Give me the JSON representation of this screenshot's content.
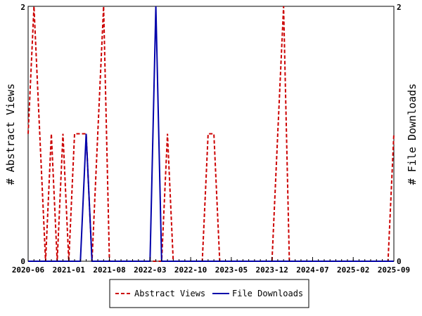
{
  "chart_data": {
    "type": "line",
    "x_tick_labels": [
      "2020-06",
      "2021-01",
      "2021-08",
      "2022-03",
      "2022-10",
      "2023-05",
      "2023-12",
      "2024-07",
      "2025-02",
      "2025-09"
    ],
    "x_range": [
      "2020-06",
      "2025-09"
    ],
    "y_left": {
      "label": "# Abstract Views",
      "range": [
        0,
        2
      ],
      "tick_labels": [
        "0",
        "2"
      ]
    },
    "y_right": {
      "label": "# File Downloads",
      "range": [
        0,
        2
      ],
      "tick_labels": [
        "0",
        "2"
      ]
    },
    "legend_position": "bottom-center",
    "grid": false,
    "series": [
      {
        "name": "Abstract Views",
        "axis": "left",
        "color": "#cc0000",
        "dash": "dashed",
        "x": [
          "2020-06",
          "2020-07",
          "2020-08",
          "2020-09",
          "2020-10",
          "2020-11",
          "2020-12",
          "2021-01",
          "2021-02",
          "2021-03",
          "2021-04",
          "2021-05",
          "2021-06",
          "2021-07",
          "2021-08",
          "2021-09",
          "2021-10",
          "2021-11",
          "2021-12",
          "2022-01",
          "2022-02",
          "2022-03",
          "2022-04",
          "2022-05",
          "2022-06",
          "2022-07",
          "2022-08",
          "2022-09",
          "2022-10",
          "2022-11",
          "2022-12",
          "2023-01",
          "2023-02",
          "2023-03",
          "2023-04",
          "2023-05",
          "2023-06",
          "2023-07",
          "2023-08",
          "2023-09",
          "2023-10",
          "2023-11",
          "2023-12",
          "2024-01",
          "2024-02",
          "2024-03",
          "2024-04",
          "2024-05",
          "2024-06",
          "2024-07",
          "2024-08",
          "2024-09",
          "2024-10",
          "2024-11",
          "2024-12",
          "2025-01",
          "2025-02",
          "2025-03",
          "2025-04",
          "2025-05",
          "2025-06",
          "2025-07",
          "2025-08",
          "2025-09"
        ],
        "values": [
          1,
          2,
          1,
          0,
          1,
          0,
          1,
          0,
          1,
          1,
          1,
          0,
          1,
          2,
          0,
          0,
          0,
          0,
          0,
          0,
          0,
          0,
          0,
          0,
          1,
          0,
          0,
          0,
          0,
          0,
          0,
          1,
          1,
          0,
          0,
          0,
          0,
          0,
          0,
          0,
          0,
          0,
          0,
          1,
          2,
          0,
          0,
          0,
          0,
          0,
          0,
          0,
          0,
          0,
          0,
          0,
          0,
          0,
          0,
          0,
          0,
          0,
          0,
          1
        ]
      },
      {
        "name": "File Downloads",
        "axis": "right",
        "color": "#0000aa",
        "dash": "solid",
        "x": [
          "2020-06",
          "2020-07",
          "2020-08",
          "2020-09",
          "2020-10",
          "2020-11",
          "2020-12",
          "2021-01",
          "2021-02",
          "2021-03",
          "2021-04",
          "2021-05",
          "2021-06",
          "2021-07",
          "2021-08",
          "2021-09",
          "2021-10",
          "2021-11",
          "2021-12",
          "2022-01",
          "2022-02",
          "2022-03",
          "2022-04",
          "2022-05",
          "2022-06",
          "2022-07",
          "2022-08",
          "2022-09",
          "2022-10",
          "2022-11",
          "2022-12",
          "2023-01",
          "2023-02",
          "2023-03",
          "2023-04",
          "2023-05",
          "2023-06",
          "2023-07",
          "2023-08",
          "2023-09",
          "2023-10",
          "2023-11",
          "2023-12",
          "2024-01",
          "2024-02",
          "2024-03",
          "2024-04",
          "2024-05",
          "2024-06",
          "2024-07",
          "2024-08",
          "2024-09",
          "2024-10",
          "2024-11",
          "2024-12",
          "2025-01",
          "2025-02",
          "2025-03",
          "2025-04",
          "2025-05",
          "2025-06",
          "2025-07",
          "2025-08",
          "2025-09"
        ],
        "values": [
          0,
          0,
          0,
          0,
          0,
          0,
          0,
          0,
          0,
          0,
          1,
          0,
          0,
          0,
          0,
          0,
          0,
          0,
          0,
          0,
          0,
          0,
          2,
          0,
          0,
          0,
          0,
          0,
          0,
          0,
          0,
          0,
          0,
          0,
          0,
          0,
          0,
          0,
          0,
          0,
          0,
          0,
          0,
          0,
          0,
          0,
          0,
          0,
          0,
          0,
          0,
          0,
          0,
          0,
          0,
          0,
          0,
          0,
          0,
          0,
          0,
          0,
          0,
          0
        ]
      }
    ]
  }
}
